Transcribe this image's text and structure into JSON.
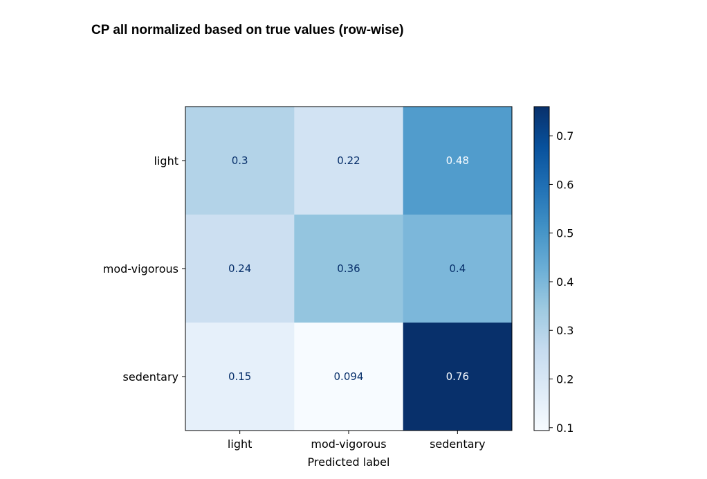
{
  "page_title": "CP all normalized based on true values (row-wise)",
  "chart_data": {
    "type": "heatmap",
    "title": "",
    "xlabel": "Predicted label",
    "ylabel": "",
    "x_categories": [
      "light",
      "mod-vigorous",
      "sedentary"
    ],
    "y_categories": [
      "light",
      "mod-vigorous",
      "sedentary"
    ],
    "values": [
      [
        0.3,
        0.22,
        0.48
      ],
      [
        0.24,
        0.36,
        0.4
      ],
      [
        0.15,
        0.094,
        0.76
      ]
    ],
    "value_labels": [
      [
        "0.3",
        "0.22",
        "0.48"
      ],
      [
        "0.24",
        "0.36",
        "0.4"
      ],
      [
        "0.15",
        "0.094",
        "0.76"
      ]
    ],
    "colormap": "Blues",
    "colorbar": {
      "range": [
        0.094,
        0.76
      ],
      "ticks": [
        0.1,
        0.2,
        0.3,
        0.4,
        0.5,
        0.6,
        0.7
      ],
      "tick_labels": [
        "0.1",
        "0.2",
        "0.3",
        "0.4",
        "0.5",
        "0.6",
        "0.7"
      ]
    },
    "colors": {
      "cmap_stops": [
        "#f7fbff",
        "#deebf7",
        "#c6dbef",
        "#9ecae1",
        "#6baed6",
        "#4292c6",
        "#2171b5",
        "#08519c",
        "#08306b"
      ],
      "dark_text": "#08306b",
      "light_text": "#f7fbff",
      "axis": "#000000"
    }
  }
}
